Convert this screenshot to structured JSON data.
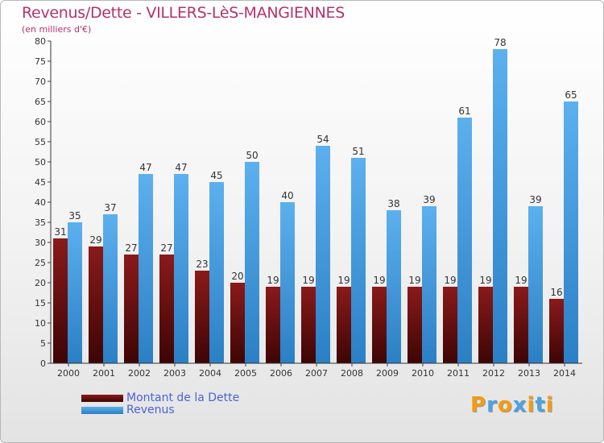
{
  "chart_data": {
    "type": "bar",
    "title": "Revenus/Dette - VILLERS-LèS-MANGIENNES",
    "subtitle": "(en milliers d'€)",
    "categories": [
      "2000",
      "2001",
      "2002",
      "2003",
      "2004",
      "2005",
      "2006",
      "2007",
      "2008",
      "2009",
      "2010",
      "2011",
      "2012",
      "2013",
      "2014"
    ],
    "series": [
      {
        "name": "Montant de la Dette",
        "color": "#6b0f0f",
        "values": [
          31,
          29,
          27,
          27,
          23,
          20,
          19,
          19,
          19,
          19,
          19,
          19,
          19,
          19,
          16
        ]
      },
      {
        "name": "Revenus",
        "color": "#4fa3e3",
        "values": [
          35,
          37,
          47,
          47,
          45,
          50,
          40,
          54,
          51,
          38,
          39,
          61,
          78,
          39,
          65
        ]
      }
    ],
    "ylim": [
      0,
      80
    ],
    "yticks": [
      0,
      5,
      10,
      15,
      20,
      25,
      30,
      35,
      40,
      45,
      50,
      55,
      60,
      65,
      70,
      75,
      80
    ],
    "grid": false,
    "legend_position": "bottom-left"
  },
  "branding": {
    "logo_letters": [
      "P",
      "r",
      "o",
      "x",
      "i",
      "t",
      "i"
    ],
    "logo_colors": [
      "#f39c12",
      "#4aa3df",
      "#f39c12",
      "#4aa3df",
      "#f39c12",
      "#4aa3df",
      "#f39c12"
    ]
  }
}
